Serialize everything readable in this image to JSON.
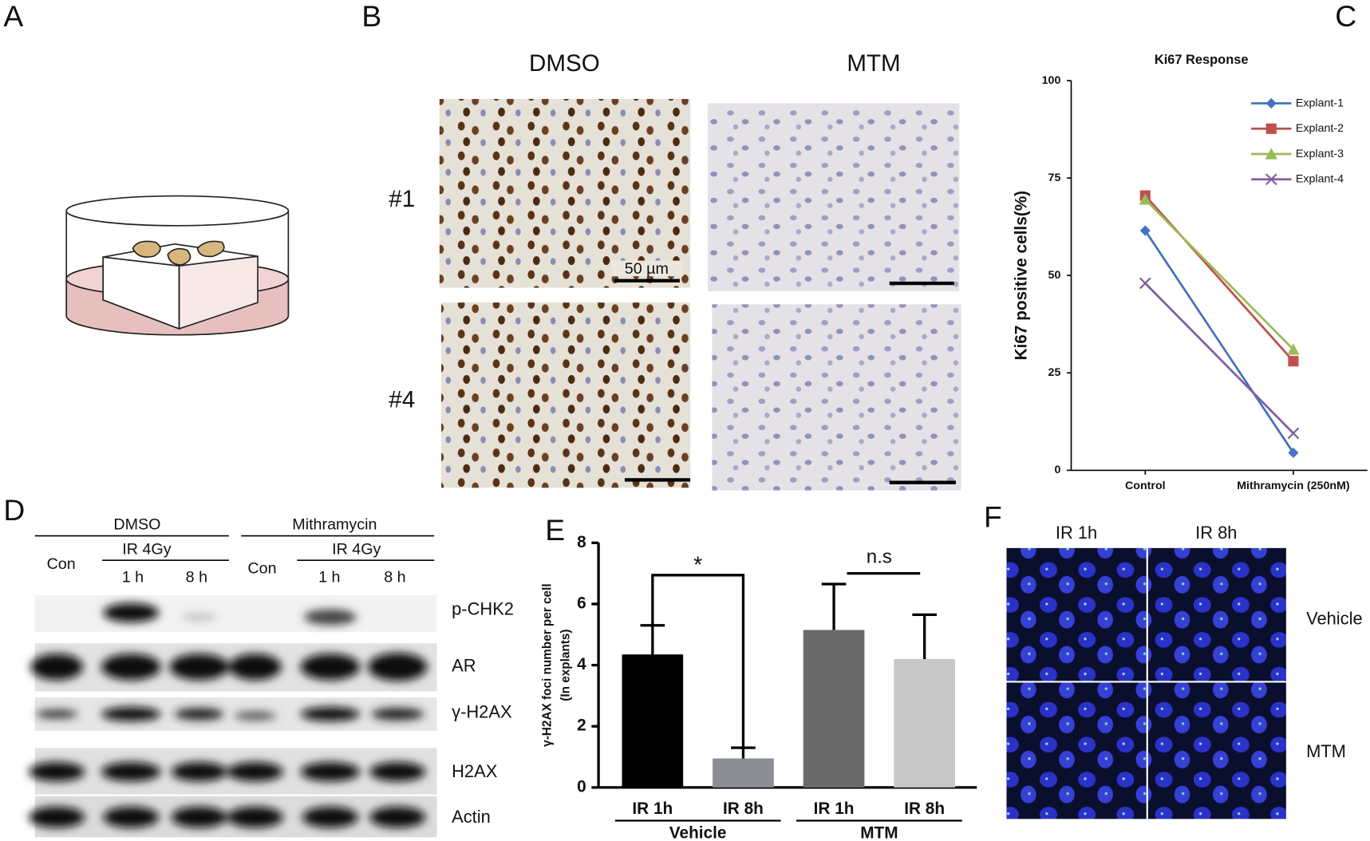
{
  "figure": {
    "panel_labels": [
      "A",
      "B",
      "C",
      "D",
      "E",
      "F"
    ]
  },
  "panel_b": {
    "columns": [
      "DMSO",
      "MTM"
    ],
    "rows": [
      "#1",
      "#4"
    ],
    "scale_bar": "50 µm"
  },
  "panel_d": {
    "groups": [
      {
        "name": "DMSO",
        "treatment": "IR 4Gy",
        "lanes": [
          "Con",
          "1 h",
          "8 h"
        ]
      },
      {
        "name": "Mithramycin",
        "treatment": "IR 4Gy",
        "lanes": [
          "Con",
          "1 h",
          "8 h"
        ]
      }
    ],
    "proteins": [
      "p-CHK2",
      "AR",
      "γ-H2AX",
      "H2AX",
      "Actin"
    ]
  },
  "panel_f": {
    "columns": [
      "IR 1h",
      "IR 8h"
    ],
    "rows": [
      "Vehicle",
      "MTM"
    ]
  },
  "chart_data": [
    {
      "type": "line",
      "title": "Ki67 Response",
      "ylabel": "Ki67 positive cells(%)",
      "categories": [
        "Control",
        "Mithramycin (250nM)"
      ],
      "series": [
        {
          "name": "Explant-1",
          "color": "#4472c4",
          "marker": "diamond",
          "values": [
            61.5,
            4.5
          ]
        },
        {
          "name": "Explant-2",
          "color": "#c0504d",
          "marker": "square",
          "values": [
            70.5,
            28
          ]
        },
        {
          "name": "Explant-3",
          "color": "#9bbb59",
          "marker": "triangle",
          "values": [
            69.5,
            31
          ]
        },
        {
          "name": "Explant-4",
          "color": "#7f5fa0",
          "marker": "x",
          "values": [
            48,
            9.5
          ]
        }
      ],
      "ylim": [
        0,
        100
      ],
      "yticks": [
        0,
        25,
        50,
        75,
        100
      ],
      "legend": "upper right"
    },
    {
      "type": "bar",
      "ylabel": [
        "γ-H2AX foci number per cell",
        "(In explants)"
      ],
      "categories": [
        "IR 1h",
        "IR 8h",
        "IR 1h",
        "IR 8h"
      ],
      "groups": [
        "Vehicle",
        "MTM"
      ],
      "values": [
        4.35,
        0.95,
        5.15,
        4.2
      ],
      "errors": [
        0.95,
        0.35,
        1.5,
        1.45
      ],
      "colors": [
        "#000000",
        "#8c8c94",
        "#6a6a6a",
        "#c8c8c8"
      ],
      "ylim": [
        0,
        8
      ],
      "yticks": [
        0,
        2,
        4,
        6,
        8
      ],
      "annotations": [
        "*",
        "n.s"
      ]
    }
  ]
}
